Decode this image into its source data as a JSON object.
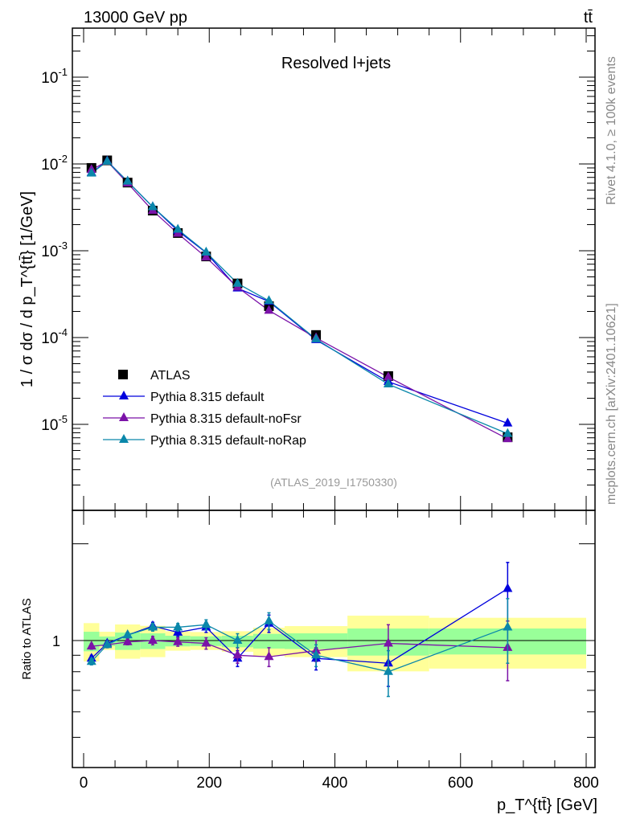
{
  "header": {
    "energy": "13000 GeV pp",
    "process": "tt̄"
  },
  "side_text": {
    "rivet": "Rivet 4.1.0, ≥ 100k events",
    "site": "mcplots.cern.ch [arXiv:2401.10621]"
  },
  "colors": {
    "atlas": "#000000",
    "default": "#0000dd",
    "noFsr": "#7b12a8",
    "noRap": "#0a87aa",
    "band_inner": "#99ff99",
    "band_outer": "#ffff99"
  },
  "chart_data": [
    {
      "type": "scatter",
      "title": "Resolved l+jets",
      "annotation": "(ATLAS_2019_I1750330)",
      "ylabel": "1 / σ dσ / d p_T^{tt̄} [1/GeV]",
      "yscale": "log",
      "ylim": [
        1e-06,
        0.37
      ],
      "ytick_labels": [
        "10^-1",
        "10^-2",
        "10^-3",
        "10^-4",
        "10^-5"
      ],
      "ytick_values": [
        0.1,
        0.01,
        0.001,
        0.0001,
        1e-05
      ],
      "legend_placement": "bottom-left",
      "x": [
        12.5,
        37.5,
        70,
        110,
        150,
        195,
        245,
        295,
        370,
        485,
        675
      ],
      "bin_edges": [
        0,
        25,
        50,
        90,
        130,
        170,
        220,
        270,
        320,
        420,
        550,
        800
      ],
      "reference": {
        "name": "ATLAS",
        "values": [
          0.009,
          0.011,
          0.0061,
          0.0029,
          0.0016,
          0.00086,
          0.00042,
          0.00023,
          0.000107,
          3.6e-05,
          7.1e-06
        ]
      },
      "series": [
        {
          "name": "Pythia 8.315 default",
          "key": "default",
          "values": [
            0.0079,
            0.0108,
            0.0063,
            0.0032,
            0.0017,
            0.00095,
            0.00037,
            0.00026,
            9.4e-05,
            3.1e-05,
            1.03e-05
          ]
        },
        {
          "name": "Pythia 8.315 default-noFsr",
          "key": "noFsr",
          "values": [
            0.0086,
            0.0107,
            0.006,
            0.0029,
            0.00158,
            0.00084,
            0.00038,
            0.000205,
            9.9e-05,
            3.5e-05,
            6.8e-06
          ]
        },
        {
          "name": "Pythia 8.315 default-noRap",
          "key": "noRap",
          "values": [
            0.0078,
            0.0107,
            0.0063,
            0.0032,
            0.00176,
            0.00096,
            0.00042,
            0.000265,
            9.6e-05,
            2.9e-05,
            7.8e-06
          ]
        }
      ]
    },
    {
      "type": "scatter",
      "ylabel": "Ratio to ATLAS",
      "xlabel": "p_T^{tt̄} [GeV]",
      "yscale": "log",
      "ylim": [
        0.4,
        2.54
      ],
      "xlim": [
        -20,
        812
      ],
      "xtick_labels": [
        "0",
        "200",
        "400",
        "600",
        "800"
      ],
      "xtick_values": [
        0,
        200,
        400,
        600,
        800
      ],
      "ytick_label": "1",
      "band_outer_low": [
        0.861,
        0.935,
        0.878,
        0.888,
        0.93,
        0.935,
        0.923,
        0.897,
        0.888,
        0.802,
        0.818
      ],
      "band_outer_high": [
        1.133,
        1.065,
        1.122,
        1.111,
        1.069,
        1.063,
        1.069,
        1.096,
        1.109,
        1.195,
        1.177
      ],
      "band_inner_low": [
        0.926,
        0.962,
        0.935,
        0.941,
        0.959,
        0.962,
        0.953,
        0.944,
        0.941,
        0.898,
        0.905
      ],
      "band_inner_high": [
        1.065,
        1.029,
        1.059,
        1.053,
        1.035,
        1.031,
        1.035,
        1.049,
        1.053,
        1.09,
        1.09
      ],
      "series": [
        {
          "key": "default",
          "ratio": [
            0.88,
            0.98,
            1.04,
            1.11,
            1.06,
            1.1,
            0.88,
            1.13,
            0.88,
            0.85,
            1.45
          ],
          "err": [
            0.02,
            0.02,
            0.02,
            0.03,
            0.03,
            0.04,
            0.05,
            0.07,
            0.07,
            0.13,
            0.3
          ]
        },
        {
          "key": "noFsr",
          "ratio": [
            0.96,
            0.97,
            0.99,
            1.0,
            0.99,
            0.98,
            0.9,
            0.89,
            0.93,
            0.98,
            0.95
          ],
          "err": [
            0.02,
            0.02,
            0.02,
            0.03,
            0.03,
            0.04,
            0.05,
            0.06,
            0.07,
            0.14,
            0.2
          ]
        },
        {
          "key": "noRap",
          "ratio": [
            0.86,
            0.97,
            1.04,
            1.1,
            1.1,
            1.12,
            1.0,
            1.15,
            0.9,
            0.8,
            1.1
          ],
          "err": [
            0.02,
            0.02,
            0.02,
            0.03,
            0.03,
            0.04,
            0.05,
            0.07,
            0.07,
            0.13,
            0.25
          ]
        }
      ]
    }
  ]
}
